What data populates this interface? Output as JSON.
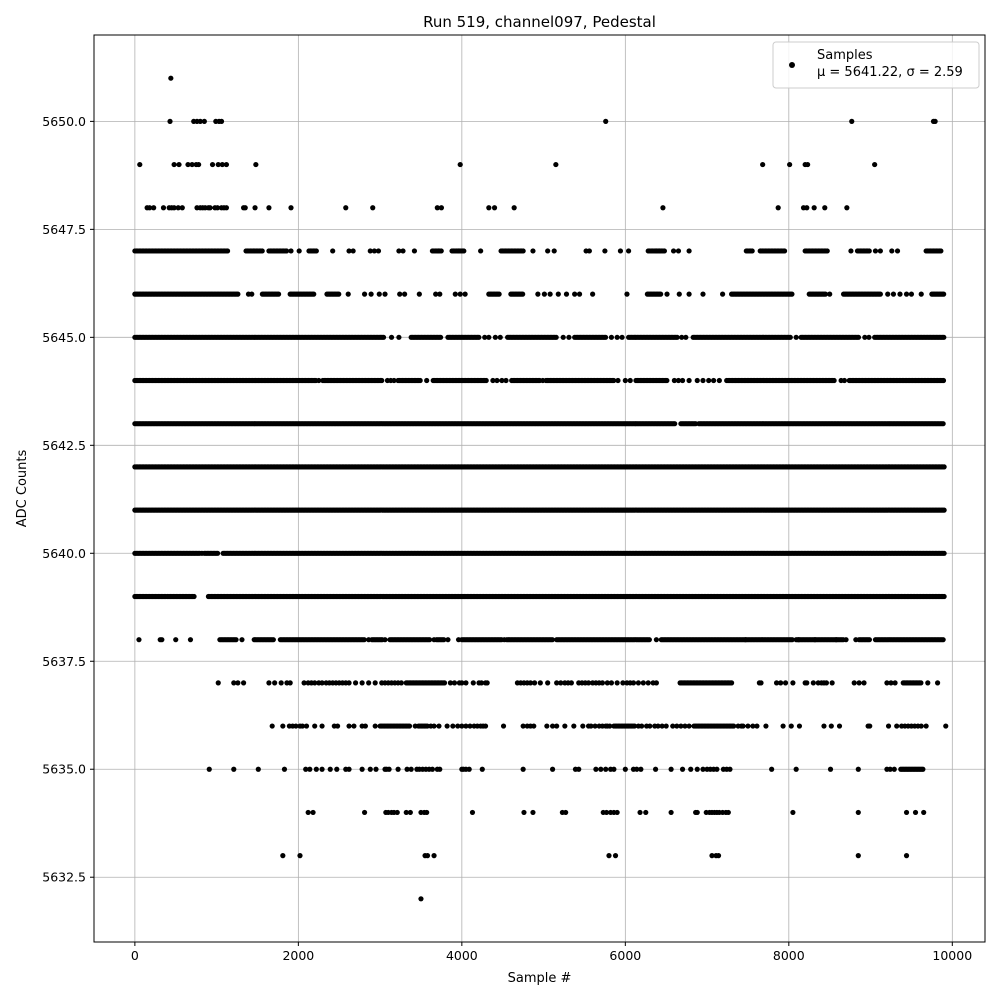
{
  "chart_data": {
    "type": "scatter",
    "title": "Run 519, channel097, Pedestal",
    "xlabel": "Sample #",
    "ylabel": "ADC Counts",
    "xlim": [
      -500,
      10400
    ],
    "ylim": [
      5631.0,
      5652.0
    ],
    "xticks": [
      0,
      2000,
      4000,
      6000,
      8000,
      10000
    ],
    "xtick_labels": [
      "0",
      "2000",
      "4000",
      "6000",
      "8000",
      "10000"
    ],
    "yticks": [
      5632.5,
      5635.0,
      5637.5,
      5640.0,
      5642.5,
      5645.0,
      5647.5,
      5650.0
    ],
    "ytick_labels": [
      "5632.5",
      "5635.0",
      "5637.5",
      "5640.0",
      "5642.5",
      "5645.0",
      "5647.5",
      "5650.0"
    ],
    "grid": true,
    "marker_color": "#000000",
    "legend": {
      "position": "top-right",
      "series_name": "Samples",
      "stats_line": "μ = 5641.22, σ = 2.59"
    },
    "series": [
      {
        "name": "Samples",
        "x_range": [
          0,
          9900
        ],
        "levels": [
          {
            "y": 5651,
            "x": [
              440
            ]
          },
          {
            "y": 5650,
            "x": [
              430,
              720,
              760,
              800,
              850,
              990,
              1030,
              1060,
              5760,
              8770,
              9770,
              9790
            ]
          },
          {
            "y": 5649,
            "x": [
              60,
              480,
              540,
              650,
              700,
              750,
              780,
              950,
              1020,
              1070,
              1120,
              1480,
              3980,
              5150,
              7680,
              8010,
              8200,
              8230,
              9050
            ]
          },
          {
            "y": 5648,
            "x": [
              150,
              180,
              230,
              350,
              420,
              450,
              480,
              530,
              580,
              760,
              800,
              830,
              860,
              900,
              920,
              980,
              1010,
              1060,
              1090,
              1120,
              1330,
              1350,
              1470,
              1640,
              1910,
              2580,
              2910,
              3700,
              3750,
              4330,
              4400,
              4640,
              6460,
              7870,
              8180,
              8220,
              8310,
              8440,
              8710
            ]
          },
          {
            "y": 5647,
            "dense": [
              [
                0,
                1150
              ],
              [
                1360,
                1560
              ],
              [
                1640,
                1860
              ],
              [
                2130,
                2230
              ],
              [
                3640,
                3760
              ],
              [
                3880,
                4040
              ],
              [
                4480,
                4760
              ],
              [
                6280,
                6480
              ],
              [
                7480,
                7560
              ],
              [
                7660,
                7960
              ],
              [
                8200,
                8470
              ],
              [
                8840,
                9000
              ],
              [
                9680,
                9860
              ]
            ],
            "x": [
              1910,
              2010,
              2420,
              2620,
              2670,
              2880,
              2930,
              2980,
              3230,
              3280,
              3420,
              3710,
              3960,
              4230,
              4870,
              5050,
              5130,
              5520,
              5560,
              5750,
              5940,
              6040,
              6380,
              6420,
              6590,
              6650,
              6780,
              7650,
              8760,
              9060,
              9120,
              9260,
              9330
            ]
          },
          {
            "y": 5646,
            "dense": [
              [
                0,
                1260
              ],
              [
                1560,
                1760
              ],
              [
                1900,
                2200
              ],
              [
                2350,
                2500
              ],
              [
                4330,
                4460
              ],
              [
                4600,
                4760
              ],
              [
                6270,
                6440
              ],
              [
                7300,
                8050
              ],
              [
                8250,
                8450
              ],
              [
                8670,
                9130
              ],
              [
                9750,
                9900
              ]
            ],
            "x": [
              1390,
              1430,
              2610,
              2810,
              2890,
              2990,
              3060,
              3240,
              3300,
              3480,
              3680,
              3730,
              3920,
              3980,
              4040,
              4930,
              5010,
              5080,
              5180,
              5280,
              5380,
              5440,
              5600,
              6020,
              6510,
              6660,
              6780,
              6950,
              7190,
              8500,
              9210,
              9280,
              9360,
              9440,
              9500,
              9620
            ]
          },
          {
            "y": 5645,
            "dense": [
              [
                0,
                3050
              ],
              [
                3380,
                3750
              ],
              [
                3830,
                4220
              ],
              [
                4560,
                5160
              ],
              [
                5380,
                5760
              ],
              [
                6040,
                6640
              ],
              [
                6830,
                8020
              ],
              [
                8150,
                8860
              ],
              [
                9050,
                9900
              ]
            ],
            "x": [
              3140,
              3230,
              4280,
              4330,
              4410,
              4470,
              5240,
              5310,
              5830,
              5900,
              5960,
              6690,
              6740,
              8090,
              8930,
              8980
            ]
          },
          {
            "y": 5644,
            "dense": [
              [
                0,
                2230
              ],
              [
                2300,
                3030
              ],
              [
                3220,
                3500
              ],
              [
                3650,
                4300
              ],
              [
                4610,
                4960
              ],
              [
                5030,
                5860
              ],
              [
                6130,
                6520
              ],
              [
                7240,
                8560
              ],
              [
                8740,
                9900
              ]
            ],
            "x": [
              2250,
              3090,
              3130,
              3170,
              3570,
              4380,
              4430,
              4490,
              4540,
              4990,
              5910,
              6000,
              6060,
              6600,
              6650,
              6700,
              6780,
              6880,
              6950,
              7020,
              7080,
              7150,
              8640,
              8680
            ]
          },
          {
            "y": 5643,
            "dense": [
              [
                0,
                6000
              ],
              [
                6010,
                6620
              ],
              [
                6680,
                6860
              ],
              [
                6900,
                9900
              ]
            ]
          },
          {
            "y": 5642,
            "dense": [
              [
                0,
                9900
              ]
            ]
          },
          {
            "y": 5641,
            "dense": [
              [
                0,
                9900
              ]
            ]
          },
          {
            "y": 5640,
            "dense": [
              [
                0,
                800
              ],
              [
                850,
                1020
              ],
              [
                1080,
                9900
              ]
            ],
            "x": [
              820
            ]
          },
          {
            "y": 5639,
            "dense": [
              [
                0,
                380
              ],
              [
                400,
                740
              ],
              [
                900,
                9900
              ]
            ]
          },
          {
            "y": 5638,
            "dense": [
              [
                1040,
                1240
              ],
              [
                1460,
                1710
              ],
              [
                1780,
                2820
              ],
              [
                2900,
                3030
              ],
              [
                3120,
                3620
              ],
              [
                3690,
                3780
              ],
              [
                4000,
                4500
              ],
              [
                4550,
                5120
              ],
              [
                5160,
                6300
              ],
              [
                6440,
                8050
              ],
              [
                8090,
                8670
              ],
              [
                8860,
                9000
              ],
              [
                9060,
                9900
              ]
            ],
            "x": [
              50,
              310,
              330,
              500,
              680,
              1310,
              2860,
              3060,
              3660,
              3830,
              3960,
              4520,
              6380,
              7470,
              8120,
              8320,
              8580,
              8700,
              8820
            ]
          },
          {
            "y": 5637,
            "dense": [
              [
                3320,
                3800
              ],
              [
                6670,
                7310
              ],
              [
                9400,
                9620
              ]
            ],
            "x": [
              1020,
              1210,
              1260,
              1330,
              1640,
              1710,
              1790,
              1860,
              1900,
              2070,
              2120,
              2160,
              2200,
              2250,
              2290,
              2340,
              2380,
              2420,
              2460,
              2500,
              2540,
              2580,
              2620,
              2700,
              2780,
              2860,
              2940,
              3020,
              3060,
              3100,
              3140,
              3180,
              3220,
              3260,
              3860,
              3910,
              3970,
              4000,
              4050,
              4140,
              4210,
              4240,
              4290,
              4310,
              4680,
              4720,
              4760,
              4800,
              4840,
              4890,
              4960,
              5050,
              5160,
              5210,
              5260,
              5300,
              5340,
              5430,
              5470,
              5510,
              5550,
              5600,
              5640,
              5680,
              5720,
              5780,
              5830,
              5900,
              5970,
              6020,
              6060,
              6100,
              6160,
              6220,
              6280,
              6340,
              6380,
              7640,
              7660,
              7850,
              7900,
              7960,
              8050,
              8200,
              8220,
              8300,
              8360,
              8400,
              8430,
              8460,
              8530,
              8800,
              8860,
              8920,
              9200,
              9250,
              9300,
              9700,
              9820
            ]
          },
          {
            "y": 5636,
            "dense": [
              [
                3000,
                3360
              ],
              [
                3470,
                3590
              ],
              [
                5860,
                6120
              ],
              [
                6840,
                7340
              ]
            ],
            "x": [
              1680,
              1810,
              1890,
              1930,
              1970,
              2020,
              2050,
              2100,
              2200,
              2290,
              2440,
              2480,
              2620,
              2680,
              2780,
              2820,
              2940,
              3430,
              3620,
              3660,
              3720,
              3820,
              3890,
              3950,
              4000,
              4050,
              4100,
              4150,
              4190,
              4230,
              4260,
              4290,
              4510,
              4750,
              4800,
              4840,
              4880,
              5040,
              5110,
              5160,
              5260,
              5370,
              5480,
              5550,
              5580,
              5630,
              5680,
              5720,
              5760,
              5780,
              5810,
              6160,
              6200,
              6260,
              6300,
              6360,
              6400,
              6450,
              6500,
              6580,
              6630,
              6680,
              6730,
              6780,
              7380,
              7420,
              7440,
              7500,
              7560,
              7610,
              7720,
              7930,
              8030,
              8130,
              8430,
              8520,
              8620,
              8970,
              8990,
              9220,
              9320,
              9380,
              9420,
              9460,
              9500,
              9540,
              9580,
              9620,
              9680,
              9920
            ]
          },
          {
            "y": 5635,
            "dense": [
              [
                9370,
                9650
              ]
            ],
            "x": [
              910,
              1210,
              1510,
              1830,
              2090,
              2140,
              2220,
              2290,
              2390,
              2470,
              2580,
              2620,
              2780,
              2880,
              2950,
              3060,
              3080,
              3110,
              3220,
              3330,
              3380,
              3450,
              3480,
              3520,
              3560,
              3600,
              3640,
              3700,
              3730,
              4000,
              4020,
              4050,
              4090,
              4250,
              4750,
              5110,
              5390,
              5430,
              5640,
              5700,
              5760,
              5820,
              5860,
              6000,
              6100,
              6140,
              6190,
              6370,
              6560,
              6700,
              6800,
              6880,
              6950,
              7000,
              7040,
              7080,
              7120,
              7200,
              7240,
              7280,
              7790,
              8090,
              8510,
              8850,
              9200,
              9240,
              9290
            ]
          },
          {
            "y": 5634,
            "x": [
              2120,
              2180,
              2810,
              3070,
              3100,
              3140,
              3170,
              3210,
              3320,
              3370,
              3500,
              3540,
              3570,
              4130,
              4760,
              4870,
              5230,
              5270,
              5730,
              5770,
              5820,
              5860,
              5900,
              6180,
              6250,
              6560,
              6860,
              6880,
              6990,
              7030,
              7060,
              7090,
              7120,
              7150,
              7190,
              7230,
              7260,
              8050,
              8850,
              9440,
              9550,
              9650
            ]
          },
          {
            "y": 5633,
            "x": [
              1810,
              2020,
              3550,
              3580,
              3660,
              5800,
              5880,
              7060,
              7110,
              7140,
              8850,
              9440
            ]
          },
          {
            "y": 5632,
            "x": [
              3500
            ]
          }
        ]
      }
    ]
  }
}
